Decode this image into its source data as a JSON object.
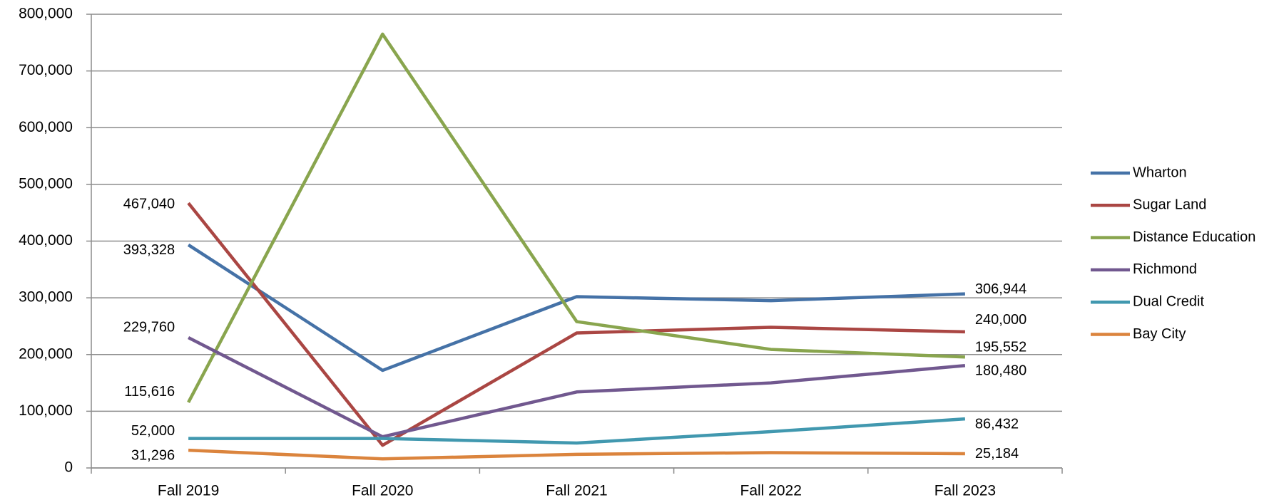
{
  "chart_data": {
    "type": "line",
    "categories": [
      "Fall 2019",
      "Fall 2020",
      "Fall 2021",
      "Fall 2022",
      "Fall 2023"
    ],
    "series": [
      {
        "name": "Wharton",
        "color": "#4572a7",
        "values": [
          393328,
          172000,
          302000,
          295000,
          306944
        ],
        "value_labels": [
          "393,328",
          null,
          null,
          null,
          "306,944"
        ]
      },
      {
        "name": "Sugar Land",
        "color": "#aa4643",
        "values": [
          467040,
          40000,
          238000,
          248000,
          240000
        ],
        "value_labels": [
          "467,040",
          null,
          null,
          null,
          "240,000"
        ]
      },
      {
        "name": "Distance Education",
        "color": "#89a54e",
        "values": [
          115616,
          765000,
          258000,
          209000,
          195552
        ],
        "value_labels": [
          "115,616",
          null,
          null,
          null,
          "195,552"
        ]
      },
      {
        "name": "Richmond",
        "color": "#71588f",
        "values": [
          229760,
          55000,
          134000,
          150000,
          180480
        ],
        "value_labels": [
          "229,760",
          null,
          null,
          null,
          "180,480"
        ]
      },
      {
        "name": "Dual Credit",
        "color": "#4198af",
        "values": [
          52000,
          52000,
          44000,
          64000,
          86432
        ],
        "value_labels": [
          "52,000",
          null,
          null,
          null,
          "86,432"
        ]
      },
      {
        "name": "Bay City",
        "color": "#db843d",
        "values": [
          31296,
          16000,
          24000,
          27000,
          25184
        ],
        "value_labels": [
          "31,296",
          null,
          null,
          null,
          "25,184"
        ]
      }
    ],
    "ylim": [
      0,
      800000
    ],
    "yticks": [
      0,
      {
        "value": 100000,
        "label": "100,000"
      },
      {
        "value": 200000,
        "label": "200,000"
      },
      {
        "value": 300000,
        "label": "300,000"
      },
      {
        "value": 400000,
        "label": "400,000"
      },
      {
        "value": 500000,
        "label": "500,000"
      },
      {
        "value": 600000,
        "label": "600,000"
      },
      {
        "value": 700000,
        "label": "700,000"
      },
      {
        "value": 800000,
        "label": "800,000"
      }
    ],
    "grid": true,
    "legend": "right"
  }
}
